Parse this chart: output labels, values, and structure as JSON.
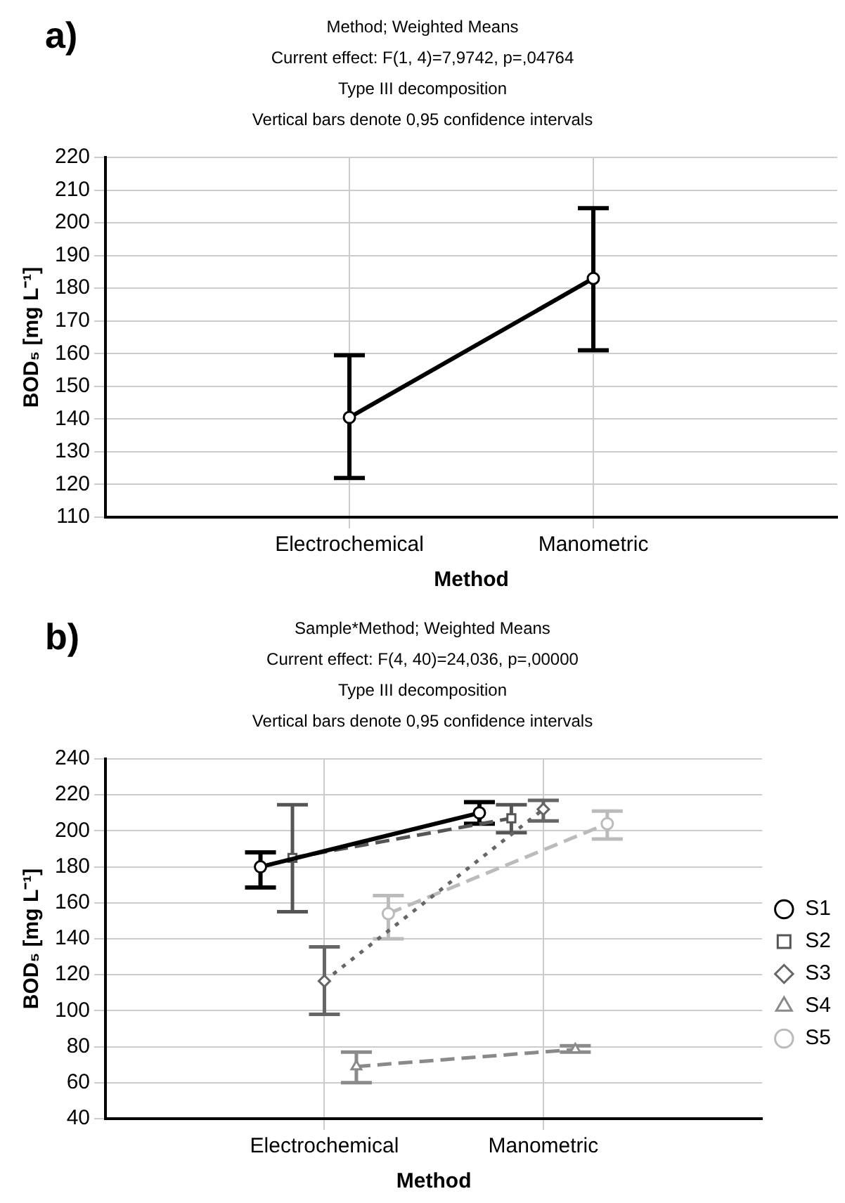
{
  "chart_data": [
    {
      "type": "line",
      "title": "Method; Weighted Means",
      "subtitle": "Current effect: F(1, 4)=7,9742, p=,04764",
      "annotations": [
        "a)",
        "Type III decomposition",
        "Vertical bars denote 0,95 confidence intervals"
      ],
      "xlabel": "Method",
      "ylabel": "BOD₅ [mg L⁻¹]",
      "categories": [
        "Electrochemical",
        "Manometric"
      ],
      "series": [
        {
          "color": "#000000",
          "values": [
            140.5,
            183
          ],
          "errors": [
            [
              122,
              159.5
            ],
            [
              161,
              204.5
            ]
          ],
          "marker": "circle",
          "line_style": "solid"
        }
      ],
      "ylim": [
        110,
        220
      ],
      "yticks": [
        110,
        120,
        130,
        140,
        150,
        160,
        170,
        180,
        190,
        200,
        210,
        220
      ],
      "grid": true,
      "legend": false
    },
    {
      "type": "line",
      "title": "Sample*Method; Weighted Means",
      "subtitle": "Current effect: F(4, 40)=24,036, p=,00000",
      "annotations": [
        "b)",
        "Type III decomposition",
        "Vertical bars denote 0,95 confidence intervals"
      ],
      "xlabel": "Method",
      "ylabel": "BOD₅ [mg L⁻¹]",
      "categories": [
        "Electrochemical",
        "Manometric"
      ],
      "series": [
        {
          "name": "S1",
          "color": "#000000",
          "values": [
            180,
            210
          ],
          "errors": [
            [
              168.5,
              188
            ],
            [
              204,
              216
            ]
          ],
          "marker": "circle",
          "line_style": "solid"
        },
        {
          "name": "S2",
          "color": "#555555",
          "values": [
            185,
            207
          ],
          "errors": [
            [
              155,
              214.5
            ],
            [
              199,
              214.5
            ]
          ],
          "marker": "square",
          "line_style": "dashed"
        },
        {
          "name": "S3",
          "color": "#666666",
          "values": [
            116.5,
            212
          ],
          "errors": [
            [
              98,
              135.5
            ],
            [
              205.5,
              217
            ]
          ],
          "marker": "diamond",
          "line_style": "dotted"
        },
        {
          "name": "S4",
          "color": "#8a8a8a",
          "values": [
            69,
            78.5
          ],
          "errors": [
            [
              60,
              77
            ],
            [
              77,
              80.5
            ]
          ],
          "marker": "triangle",
          "line_style": "dashed"
        },
        {
          "name": "S5",
          "color": "#bbbbbb",
          "values": [
            154,
            204
          ],
          "errors": [
            [
              140,
              164
            ],
            [
              195.5,
              211
            ]
          ],
          "marker": "circle",
          "line_style": "dashed"
        }
      ],
      "ylim": [
        40,
        240
      ],
      "yticks": [
        40,
        60,
        80,
        100,
        120,
        140,
        160,
        180,
        200,
        220,
        240
      ],
      "grid": true,
      "legend": "right"
    }
  ]
}
